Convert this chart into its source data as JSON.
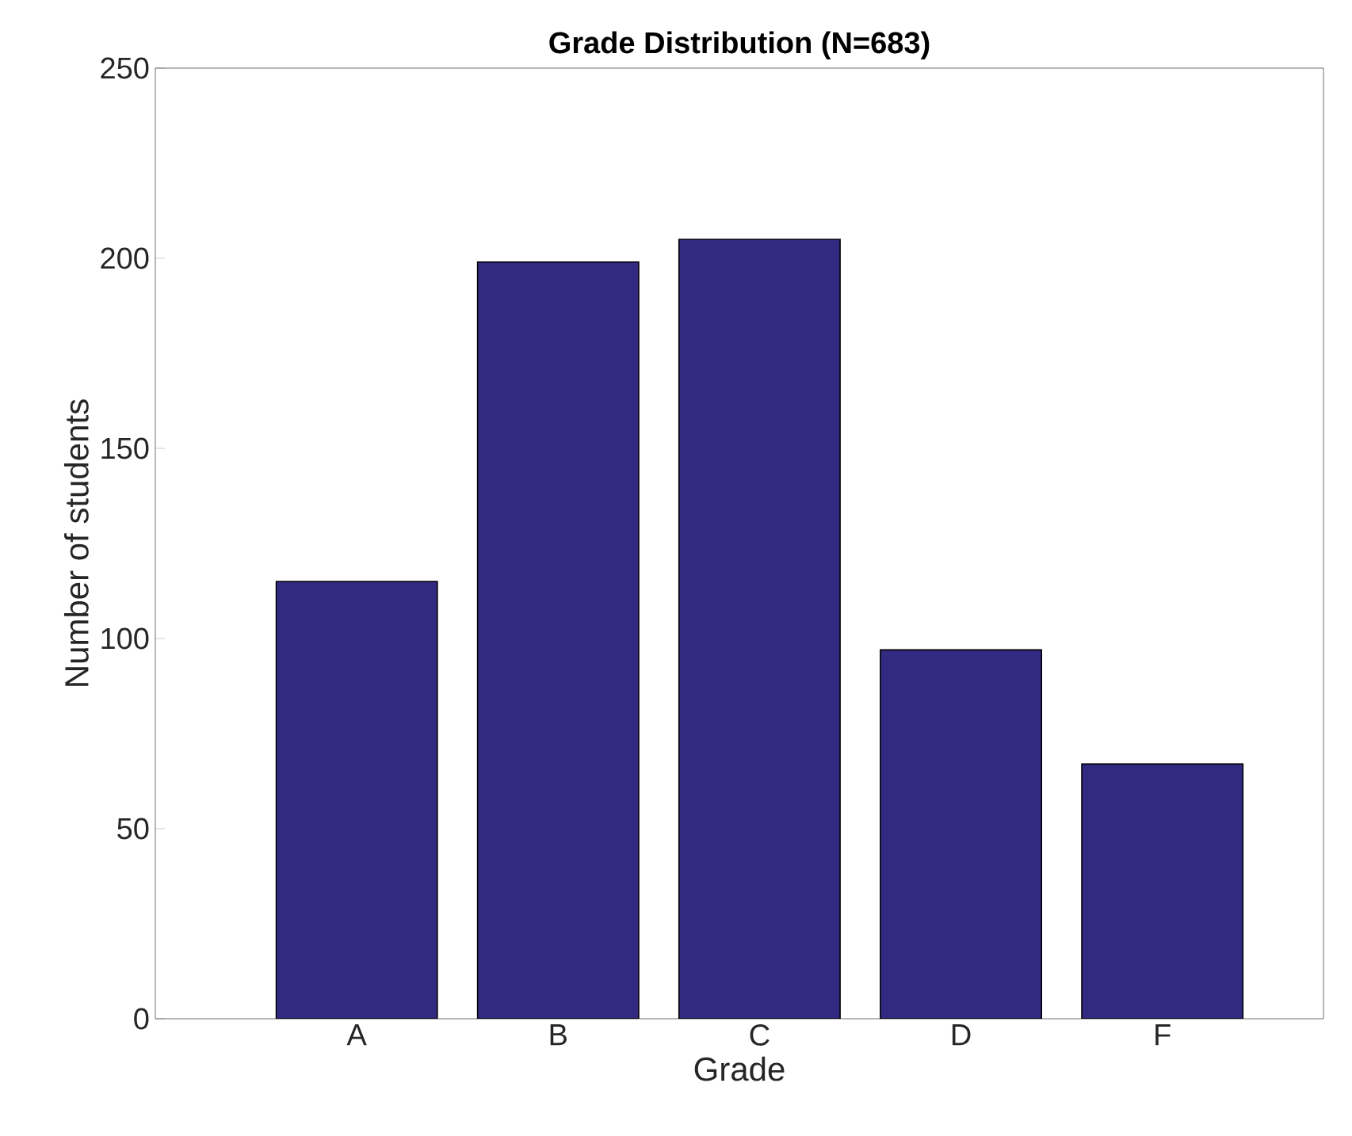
{
  "chart_data": {
    "type": "bar",
    "title": "Grade Distribution (N=683)",
    "xlabel": "Grade",
    "ylabel": "Number of students",
    "categories": [
      "A",
      "B",
      "C",
      "D",
      "F"
    ],
    "values": [
      115,
      199,
      205,
      97,
      67
    ],
    "color": "#312a80",
    "ylim": [
      0,
      250
    ],
    "yticks": [
      0,
      50,
      100,
      150,
      200,
      250
    ],
    "grid": false
  }
}
